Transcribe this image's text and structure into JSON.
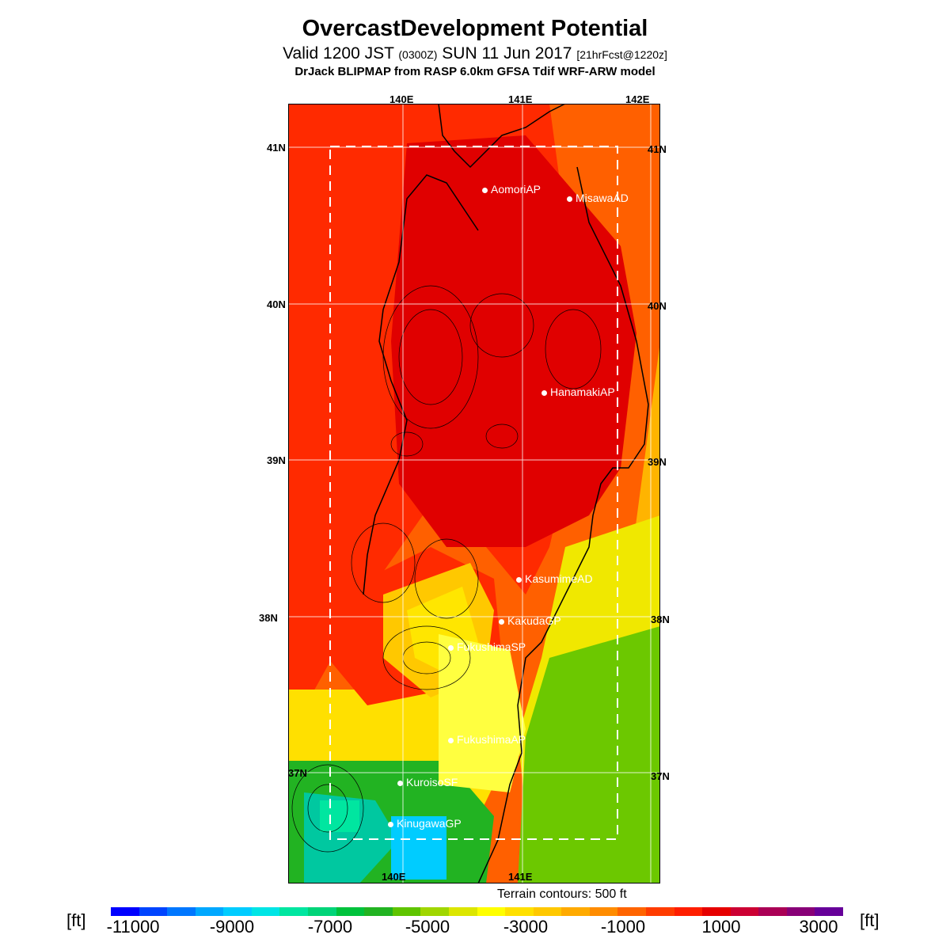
{
  "header": {
    "title": "OvercastDevelopment Potential",
    "valid_prefix": "Valid 1200 JST",
    "zulu": "(0300Z)",
    "date": "SUN 11 Jun 2017",
    "forecast": "[21hrFcst@1220z]",
    "model": "DrJack BLIPMAP from RASP 6.0km GFSA Tdif WRF-ARW model"
  },
  "map": {
    "lon_labels_top": [
      "140E",
      "141E",
      "142E"
    ],
    "lon_labels_bottom": [
      "140E",
      "141E"
    ],
    "lat_labels": [
      "41N",
      "40N",
      "39N",
      "38N",
      "37N"
    ],
    "stations": [
      {
        "name": "AomoriAP"
      },
      {
        "name": "MisawaAD"
      },
      {
        "name": "HanamakiAP"
      },
      {
        "name": "KasumimeAD"
      },
      {
        "name": "KakudaGP"
      },
      {
        "name": "FukushimaSP"
      },
      {
        "name": "FukushimaAP"
      },
      {
        "name": "KuroisoSF"
      },
      {
        "name": "KinugawaGP"
      }
    ]
  },
  "terrain_note": "Terrain contours: 500 ft",
  "colorbar": {
    "unit": "[ft]",
    "ticks": [
      "-11000",
      "-9000",
      "-7000",
      "-5000",
      "-3000",
      "-1000",
      "1000",
      "3000"
    ],
    "colors": [
      "#0000ff",
      "#0044ff",
      "#0077ff",
      "#00a8ff",
      "#00ccff",
      "#00e5e5",
      "#00e6a0",
      "#00d478",
      "#00c23c",
      "#22b322",
      "#5fc400",
      "#a0d600",
      "#dce600",
      "#ffff00",
      "#ffe000",
      "#ffc800",
      "#ffaa00",
      "#ff8c00",
      "#ff6400",
      "#ff3c00",
      "#ff1e00",
      "#e60000",
      "#cc0033",
      "#aa0055",
      "#880077",
      "#660099"
    ]
  }
}
